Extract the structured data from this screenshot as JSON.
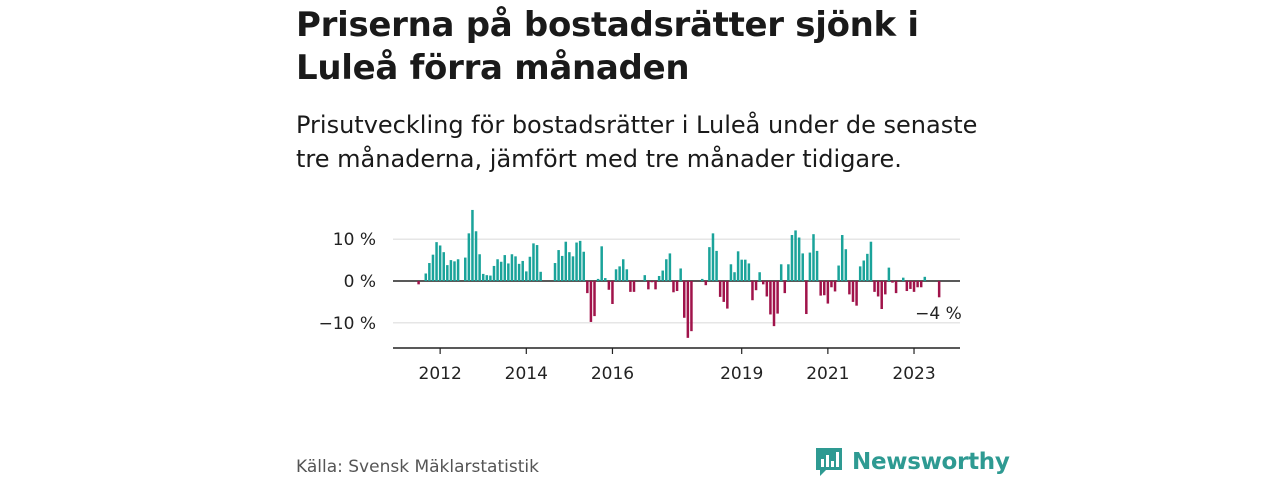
{
  "title": "Priserna på bostadsrätter sjönk i Luleå förra månaden",
  "subtitle": "Prisutveckling för bostadsrätter i Luleå under de senaste tre månaderna, jämfört med tre månader tidigare.",
  "source": "Källa: Svensk Mäklarstatistik",
  "logo": {
    "name": "Newsworthy",
    "icon": "bar-chart-bubble-icon",
    "color": "#2e9a92"
  },
  "colors": {
    "positive": "#1aa39a",
    "negative": "#a0134a",
    "grid": "#dddddd",
    "axis": "#222222"
  },
  "chart_data": {
    "type": "bar",
    "title": "",
    "xlabel": "",
    "ylabel": "",
    "ylim": [
      -16,
      22
    ],
    "yticks": [
      {
        "value": 10,
        "label": "10 %"
      },
      {
        "value": 0,
        "label": "0 %"
      },
      {
        "value": -10,
        "label": "−10 %"
      }
    ],
    "xticks": [
      {
        "year": 2012,
        "label": "2012"
      },
      {
        "year": 2014,
        "label": "2014"
      },
      {
        "year": 2016,
        "label": "2016"
      },
      {
        "year": 2019,
        "label": "2019"
      },
      {
        "year": 2021,
        "label": "2021"
      },
      {
        "year": 2023,
        "label": "2023"
      }
    ],
    "start": {
      "year": 2011,
      "month": 7
    },
    "values": [
      -0.8,
      0,
      1.8,
      4.3,
      6.3,
      9.3,
      8.5,
      6.9,
      3.8,
      5.0,
      4.7,
      5.2,
      0,
      5.6,
      11.4,
      17.0,
      11.9,
      6.4,
      1.7,
      1.4,
      1.3,
      3.6,
      5.2,
      4.6,
      6.2,
      4.2,
      6.4,
      5.9,
      4.1,
      4.8,
      2.3,
      5.8,
      9.0,
      8.6,
      2.2,
      0,
      0,
      0,
      4.3,
      7.4,
      6.0,
      9.4,
      6.9,
      5.9,
      9.2,
      9.6,
      7.0,
      -2.9,
      -9.8,
      -8.4,
      0.5,
      8.3,
      0.7,
      -2.1,
      -5.5,
      2.8,
      3.5,
      5.2,
      2.8,
      -2.6,
      -2.6,
      0,
      0,
      1.4,
      -2.0,
      -0.3,
      -2.0,
      1.2,
      2.5,
      5.2,
      6.6,
      -2.7,
      -2.4,
      3.0,
      -8.8,
      -13.6,
      -12.0,
      0,
      0,
      0.5,
      -1.0,
      8.1,
      11.4,
      7.2,
      -3.8,
      -5.0,
      -6.6,
      4.0,
      2.1,
      7.1,
      5.1,
      5.1,
      4.2,
      -4.6,
      -2.2,
      2.1,
      -0.8,
      -3.7,
      -8.0,
      -10.8,
      -7.8,
      4.0,
      -2.9,
      4.0,
      11.0,
      12.1,
      10.4,
      6.6,
      -7.9,
      6.8,
      11.2,
      7.2,
      -3.5,
      -3.4,
      -5.4,
      -1.5,
      -2.5,
      3.7,
      11.0,
      7.6,
      -3.2,
      -5.0,
      -5.9,
      3.5,
      4.9,
      6.5,
      9.4,
      -2.6,
      -3.7,
      -6.7,
      -3.2,
      3.2,
      -0.4,
      -2.9,
      0,
      0.8,
      -2.4,
      -1.9,
      -2.6,
      -1.5,
      -1.5,
      1.0,
      0,
      0,
      0,
      -3.9
    ],
    "annotation": {
      "label": "−4 %"
    }
  }
}
